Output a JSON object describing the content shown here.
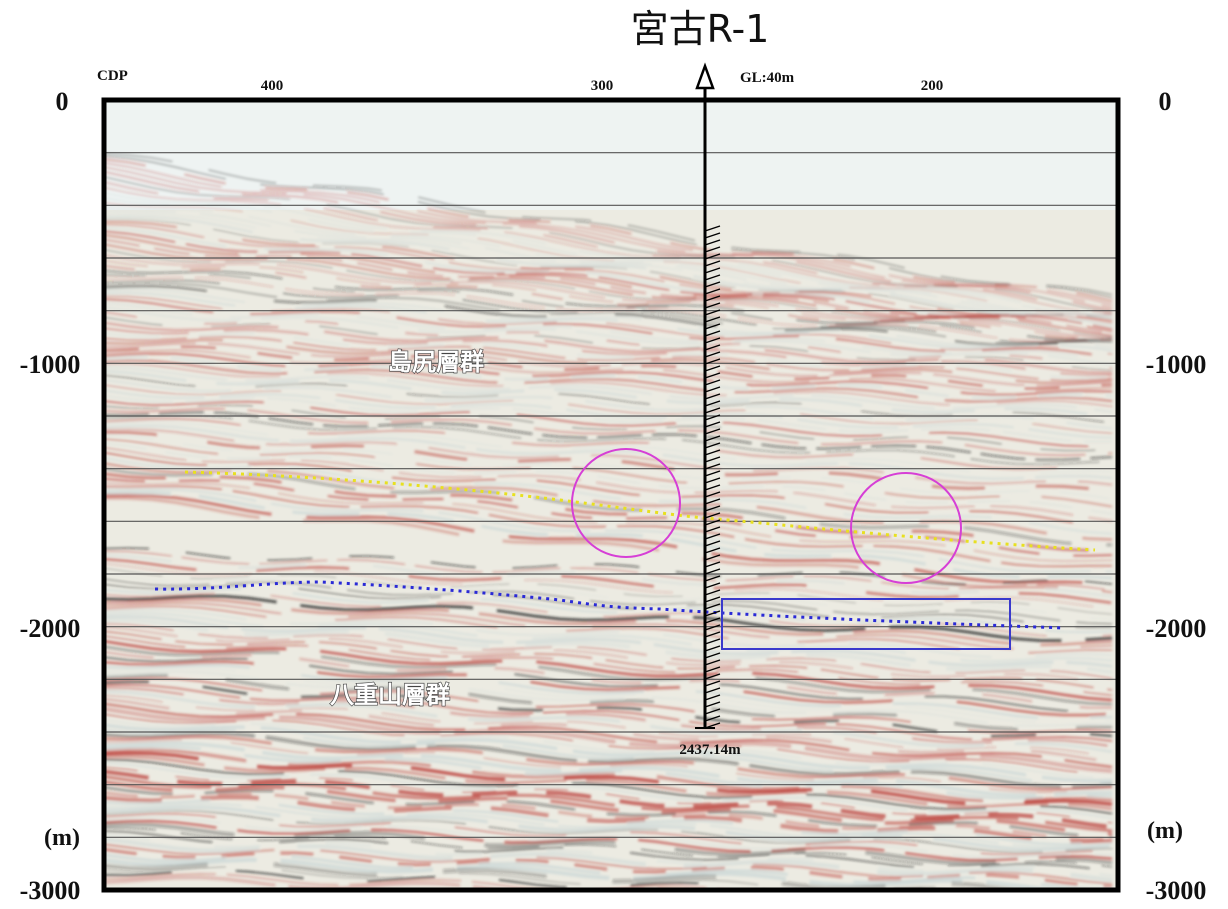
{
  "well": {
    "name": "宮古R-1",
    "ground_level": "GL:40m",
    "total_depth": "2437.14m"
  },
  "axis": {
    "cdp_label": "CDP",
    "cdp_ticks": [
      "400",
      "300",
      "200"
    ],
    "depth_ticks": [
      "0",
      "-1000",
      "-2000",
      "-3000"
    ],
    "unit_label": "(m)"
  },
  "formations": {
    "upper": "島尻層群",
    "lower": "八重山層群"
  },
  "colors": {
    "magenta_circles": "#d63fd6",
    "yellow_horizon": "#e8e020",
    "blue_horizon": "#2a2ad6",
    "blue_box": "#3a3acc",
    "seismic_red": "#b8302a",
    "seismic_black": "#1a1a1a"
  }
}
